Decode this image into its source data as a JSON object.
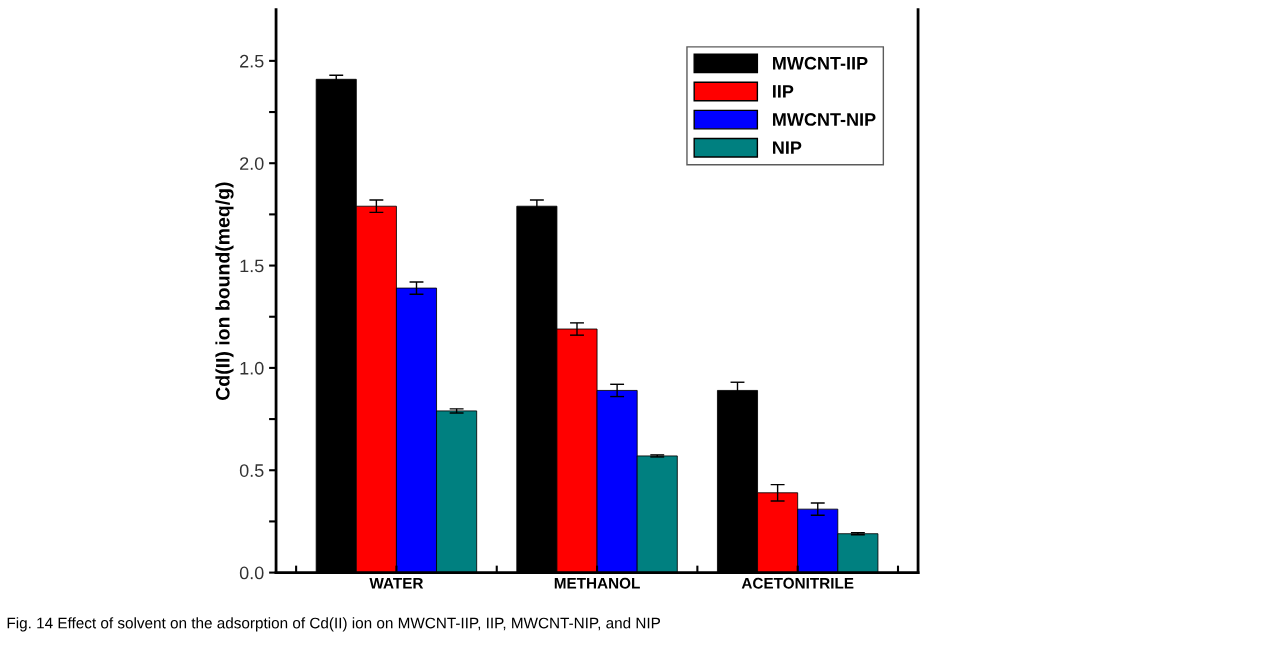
{
  "chart_data": {
    "type": "bar",
    "ylabel": "Cd(II) ion bound(meq/g)",
    "categories": [
      "WATER",
      "METHANOL",
      "ACETONITRILE"
    ],
    "series": [
      {
        "name": "MWCNT-IIP",
        "color": "#000000",
        "values": [
          2.41,
          1.79,
          0.89
        ],
        "errors": [
          0.02,
          0.03,
          0.04
        ]
      },
      {
        "name": "IIP",
        "color": "#ff0000",
        "values": [
          1.79,
          1.19,
          0.39
        ],
        "errors": [
          0.03,
          0.03,
          0.04
        ]
      },
      {
        "name": "MWCNT-NIP",
        "color": "#0000ff",
        "values": [
          1.39,
          0.89,
          0.31
        ],
        "errors": [
          0.03,
          0.03,
          0.03
        ]
      },
      {
        "name": "NIP",
        "color": "#008080",
        "values": [
          0.79,
          0.57,
          0.19
        ],
        "errors": [
          0.01,
          0.005,
          0.005
        ]
      }
    ],
    "ylim": [
      0,
      2.75
    ],
    "yticks": [
      {
        "value": 0,
        "label": "0.0"
      },
      {
        "value": 0.25,
        "label": null
      },
      0.5,
      {
        "value": 0.75,
        "label": null
      },
      {
        "value": 1,
        "label": "1.0"
      },
      {
        "value": 1.25,
        "label": null
      },
      1.5,
      {
        "value": 1.75,
        "label": null
      },
      {
        "value": 2,
        "label": "2.0"
      },
      {
        "value": 2.25,
        "label": null
      },
      2.5
    ],
    "legend": "top right",
    "grid": false,
    "annotations": [
      "Fig. 14 Effect of solvent on the adsorption of Cd(II) ion on MWCNT-IIP, IIP, MWCNT-NIP, and NIP"
    ]
  }
}
